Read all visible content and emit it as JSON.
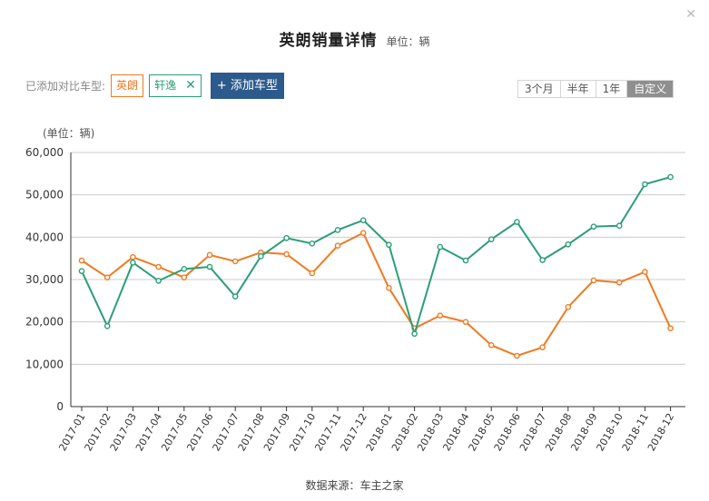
{
  "header": {
    "title": "英朗销量详情",
    "unit": "单位：辆",
    "close_icon": "close-icon"
  },
  "compare": {
    "label": "已添加对比车型:",
    "tags": [
      {
        "name": "英朗",
        "color": "#f07a21"
      },
      {
        "name": "轩逸",
        "color": "#2a9f74",
        "removable": true
      }
    ],
    "add_label": "+ 添加车型"
  },
  "range_tabs": {
    "items": [
      "3个月",
      "半年",
      "1年",
      "自定义"
    ],
    "active": "自定义"
  },
  "chart_data": {
    "type": "line",
    "ylabel": "(单位：辆)",
    "ylim": [
      0,
      60000
    ],
    "yticks": [
      "0",
      "10,000",
      "20,000",
      "30,000",
      "40,000",
      "50,000",
      "60,000"
    ],
    "categories": [
      "2017-01",
      "2017-02",
      "2017-03",
      "2017-04",
      "2017-05",
      "2017-06",
      "2017-07",
      "2017-08",
      "2017-09",
      "2017-10",
      "2017-11",
      "2017-12",
      "2018-01",
      "2018-02",
      "2018-03",
      "2018-04",
      "2018-05",
      "2018-06",
      "2018-07",
      "2018-08",
      "2018-09",
      "2018-10",
      "2018-11",
      "2018-12"
    ],
    "grid": true,
    "series": [
      {
        "name": "英朗",
        "color": "#f07a21",
        "values": [
          34500,
          30500,
          35300,
          33000,
          30500,
          35800,
          34300,
          36400,
          36000,
          31500,
          38000,
          41000,
          28000,
          18500,
          21500,
          20000,
          14500,
          12000,
          14000,
          23500,
          29800,
          29300,
          31800,
          18500
        ]
      },
      {
        "name": "轩逸",
        "color": "#2a9f74",
        "values": [
          32000,
          19000,
          34000,
          29700,
          32500,
          33000,
          26000,
          35500,
          39800,
          38500,
          41700,
          44000,
          38200,
          17200,
          37700,
          34500,
          39500,
          43600,
          34600,
          38300,
          42500,
          42700,
          52500,
          54200
        ]
      }
    ]
  },
  "footer": {
    "source": "数据来源：车主之家"
  }
}
